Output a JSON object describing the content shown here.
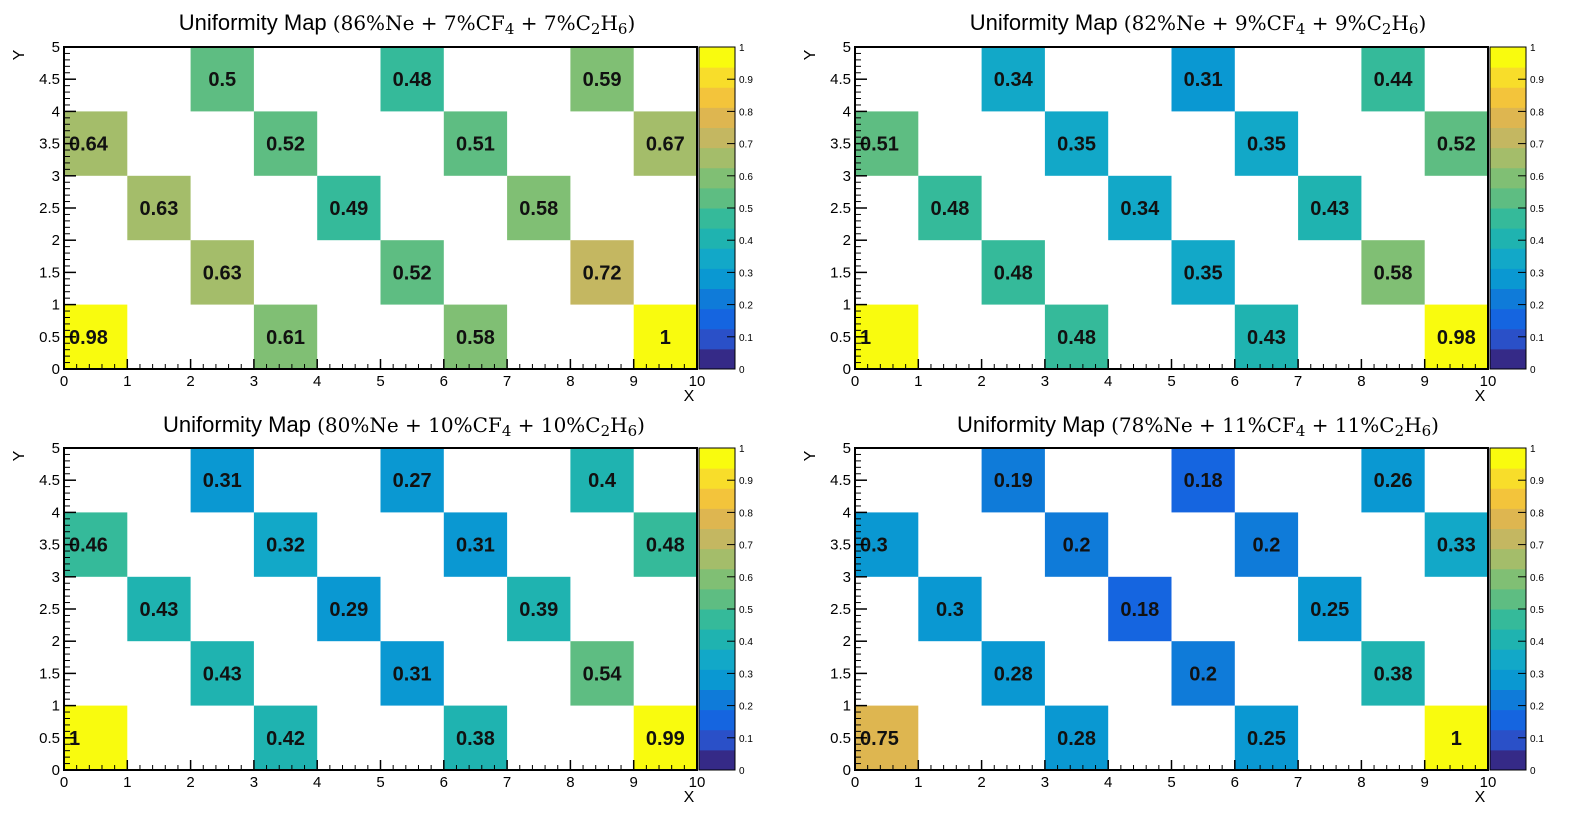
{
  "chart_data": [
    {
      "type": "heatmap",
      "title": "Uniformity Map",
      "mixture": "86%Ne + 7%CF4 + 7%C2H6",
      "xlabel": "X",
      "ylabel": "Y",
      "xlim": [
        0,
        10
      ],
      "ylim": [
        0,
        5
      ],
      "zlim": [
        0,
        1
      ],
      "cells": [
        {
          "x": 0,
          "y": 0,
          "value": 0.98,
          "label": "0.98"
        },
        {
          "x": 3,
          "y": 0,
          "value": 0.61,
          "label": "0.61"
        },
        {
          "x": 6,
          "y": 0,
          "value": 0.58,
          "label": "0.58"
        },
        {
          "x": 9,
          "y": 0,
          "value": 1,
          "label": "1"
        },
        {
          "x": 2,
          "y": 1,
          "value": 0.63,
          "label": "0.63"
        },
        {
          "x": 5,
          "y": 1,
          "value": 0.52,
          "label": "0.52"
        },
        {
          "x": 8,
          "y": 1,
          "value": 0.72,
          "label": "0.72"
        },
        {
          "x": 1,
          "y": 2,
          "value": 0.63,
          "label": "0.63"
        },
        {
          "x": 4,
          "y": 2,
          "value": 0.49,
          "label": "0.49"
        },
        {
          "x": 7,
          "y": 2,
          "value": 0.58,
          "label": "0.58"
        },
        {
          "x": 0,
          "y": 3,
          "value": 0.64,
          "label": "0.64"
        },
        {
          "x": 3,
          "y": 3,
          "value": 0.52,
          "label": "0.52"
        },
        {
          "x": 6,
          "y": 3,
          "value": 0.51,
          "label": "0.51"
        },
        {
          "x": 9,
          "y": 3,
          "value": 0.67,
          "label": "0.67"
        },
        {
          "x": 2,
          "y": 4,
          "value": 0.5,
          "label": "0.5"
        },
        {
          "x": 5,
          "y": 4,
          "value": 0.48,
          "label": "0.48"
        },
        {
          "x": 8,
          "y": 4,
          "value": 0.59,
          "label": "0.59"
        }
      ]
    },
    {
      "type": "heatmap",
      "title": "Uniformity Map",
      "mixture": "82%Ne + 9%CF4 + 9%C2H6",
      "xlabel": "X",
      "ylabel": "Y",
      "xlim": [
        0,
        10
      ],
      "ylim": [
        0,
        5
      ],
      "zlim": [
        0,
        1
      ],
      "cells": [
        {
          "x": 0,
          "y": 0,
          "value": 1,
          "label": "1"
        },
        {
          "x": 3,
          "y": 0,
          "value": 0.48,
          "label": "0.48"
        },
        {
          "x": 6,
          "y": 0,
          "value": 0.43,
          "label": "0.43"
        },
        {
          "x": 9,
          "y": 0,
          "value": 0.98,
          "label": "0.98"
        },
        {
          "x": 2,
          "y": 1,
          "value": 0.48,
          "label": "0.48"
        },
        {
          "x": 5,
          "y": 1,
          "value": 0.35,
          "label": "0.35"
        },
        {
          "x": 8,
          "y": 1,
          "value": 0.58,
          "label": "0.58"
        },
        {
          "x": 1,
          "y": 2,
          "value": 0.48,
          "label": "0.48"
        },
        {
          "x": 4,
          "y": 2,
          "value": 0.34,
          "label": "0.34"
        },
        {
          "x": 7,
          "y": 2,
          "value": 0.43,
          "label": "0.43"
        },
        {
          "x": 0,
          "y": 3,
          "value": 0.51,
          "label": "0.51"
        },
        {
          "x": 3,
          "y": 3,
          "value": 0.35,
          "label": "0.35"
        },
        {
          "x": 6,
          "y": 3,
          "value": 0.35,
          "label": "0.35"
        },
        {
          "x": 9,
          "y": 3,
          "value": 0.52,
          "label": "0.52"
        },
        {
          "x": 2,
          "y": 4,
          "value": 0.34,
          "label": "0.34"
        },
        {
          "x": 5,
          "y": 4,
          "value": 0.31,
          "label": "0.31"
        },
        {
          "x": 8,
          "y": 4,
          "value": 0.44,
          "label": "0.44"
        }
      ]
    },
    {
      "type": "heatmap",
      "title": "Uniformity Map",
      "mixture": "80%Ne + 10%CF4 + 10%C2H6",
      "xlabel": "X",
      "ylabel": "Y",
      "xlim": [
        0,
        10
      ],
      "ylim": [
        0,
        5
      ],
      "zlim": [
        0,
        1
      ],
      "cells": [
        {
          "x": 0,
          "y": 0,
          "value": 1,
          "label": "1"
        },
        {
          "x": 3,
          "y": 0,
          "value": 0.42,
          "label": "0.42"
        },
        {
          "x": 6,
          "y": 0,
          "value": 0.38,
          "label": "0.38"
        },
        {
          "x": 9,
          "y": 0,
          "value": 0.99,
          "label": "0.99"
        },
        {
          "x": 2,
          "y": 1,
          "value": 0.43,
          "label": "0.43"
        },
        {
          "x": 5,
          "y": 1,
          "value": 0.31,
          "label": "0.31"
        },
        {
          "x": 8,
          "y": 1,
          "value": 0.54,
          "label": "0.54"
        },
        {
          "x": 1,
          "y": 2,
          "value": 0.43,
          "label": "0.43"
        },
        {
          "x": 4,
          "y": 2,
          "value": 0.29,
          "label": "0.29"
        },
        {
          "x": 7,
          "y": 2,
          "value": 0.39,
          "label": "0.39"
        },
        {
          "x": 0,
          "y": 3,
          "value": 0.46,
          "label": "0.46"
        },
        {
          "x": 3,
          "y": 3,
          "value": 0.32,
          "label": "0.32"
        },
        {
          "x": 6,
          "y": 3,
          "value": 0.31,
          "label": "0.31"
        },
        {
          "x": 9,
          "y": 3,
          "value": 0.48,
          "label": "0.48"
        },
        {
          "x": 2,
          "y": 4,
          "value": 0.31,
          "label": "0.31"
        },
        {
          "x": 5,
          "y": 4,
          "value": 0.27,
          "label": "0.27"
        },
        {
          "x": 8,
          "y": 4,
          "value": 0.4,
          "label": "0.4"
        }
      ]
    },
    {
      "type": "heatmap",
      "title": "Uniformity Map",
      "mixture": "78%Ne + 11%CF4 + 11%C2H6",
      "xlabel": "X",
      "ylabel": "Y",
      "xlim": [
        0,
        10
      ],
      "ylim": [
        0,
        5
      ],
      "zlim": [
        0,
        1
      ],
      "cells": [
        {
          "x": 0,
          "y": 0,
          "value": 0.75,
          "label": "0.75"
        },
        {
          "x": 3,
          "y": 0,
          "value": 0.28,
          "label": "0.28"
        },
        {
          "x": 6,
          "y": 0,
          "value": 0.25,
          "label": "0.25"
        },
        {
          "x": 9,
          "y": 0,
          "value": 1,
          "label": "1"
        },
        {
          "x": 2,
          "y": 1,
          "value": 0.28,
          "label": "0.28"
        },
        {
          "x": 5,
          "y": 1,
          "value": 0.2,
          "label": "0.2"
        },
        {
          "x": 8,
          "y": 1,
          "value": 0.38,
          "label": "0.38"
        },
        {
          "x": 1,
          "y": 2,
          "value": 0.3,
          "label": "0.3"
        },
        {
          "x": 4,
          "y": 2,
          "value": 0.18,
          "label": "0.18"
        },
        {
          "x": 7,
          "y": 2,
          "value": 0.25,
          "label": "0.25"
        },
        {
          "x": 0,
          "y": 3,
          "value": 0.3,
          "label": "0.3"
        },
        {
          "x": 3,
          "y": 3,
          "value": 0.2,
          "label": "0.2"
        },
        {
          "x": 6,
          "y": 3,
          "value": 0.2,
          "label": "0.2"
        },
        {
          "x": 9,
          "y": 3,
          "value": 0.33,
          "label": "0.33"
        },
        {
          "x": 2,
          "y": 4,
          "value": 0.19,
          "label": "0.19"
        },
        {
          "x": 5,
          "y": 4,
          "value": 0.18,
          "label": "0.18"
        },
        {
          "x": 8,
          "y": 4,
          "value": 0.26,
          "label": "0.26"
        }
      ]
    }
  ],
  "axis_ticks": {
    "x": [
      "0",
      "1",
      "2",
      "3",
      "4",
      "5",
      "6",
      "7",
      "8",
      "9",
      "10"
    ],
    "y": [
      "0",
      "0.5",
      "1",
      "1.5",
      "2",
      "2.5",
      "3",
      "3.5",
      "4",
      "4.5",
      "5"
    ],
    "z": [
      "0",
      "0.1",
      "0.2",
      "0.3",
      "0.4",
      "0.5",
      "0.6",
      "0.7",
      "0.8",
      "0.9",
      "1"
    ]
  },
  "palette": [
    "#352a87",
    "#2a50c8",
    "#1565e0",
    "#0f7bd9",
    "#0a98d2",
    "#12a8c8",
    "#1fb3b0",
    "#35ba9a",
    "#5ebd82",
    "#80bf74",
    "#a4bd6a",
    "#c4b761",
    "#deb650",
    "#f3c43b",
    "#f8dd2a",
    "#f9fb0e"
  ]
}
